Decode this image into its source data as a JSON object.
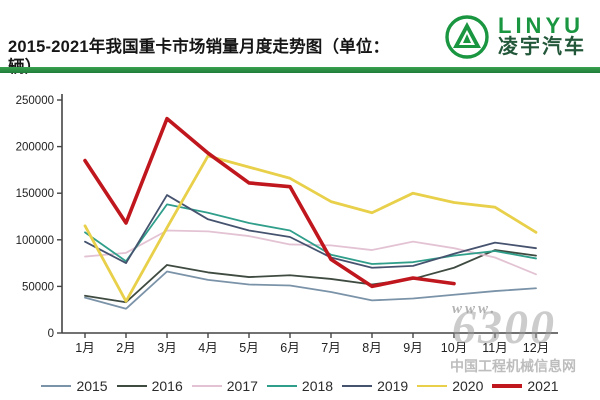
{
  "header": {
    "title": "2015-2021年我国重卡市场销量月度走势图（单位：辆）",
    "brand": {
      "name_en": "LINYU",
      "name_cn": "凌宇汽车",
      "accent_color": "#1a9641",
      "dark_color": "#23573a"
    },
    "divider_color": "#2f9c49"
  },
  "watermark": {
    "www": "www.",
    "number": "6300",
    "site": "中国工程机械信息网"
  },
  "chart_data": {
    "type": "line",
    "title": "2015-2021年我国重卡市场销量月度走势图",
    "unit": "辆",
    "categories": [
      "1月",
      "2月",
      "3月",
      "4月",
      "5月",
      "6月",
      "7月",
      "8月",
      "9月",
      "10月",
      "11月",
      "12月"
    ],
    "ylim": [
      0,
      250000
    ],
    "ytick_step": 50000,
    "yticks": [
      "0",
      "50000",
      "100000",
      "150000",
      "200000",
      "250000"
    ],
    "grid": false,
    "legend_position": "bottom",
    "axis_color": "#444444",
    "series": [
      {
        "name": "2015",
        "color": "#7b93a8",
        "width": 1.8,
        "values": [
          38000,
          26000,
          66000,
          57000,
          52000,
          51000,
          44000,
          35000,
          37000,
          41000,
          45000,
          48000
        ]
      },
      {
        "name": "2016",
        "color": "#3f4b41",
        "width": 1.8,
        "values": [
          40000,
          33000,
          73000,
          65000,
          60000,
          62000,
          58000,
          52000,
          58000,
          70000,
          89000,
          83000
        ]
      },
      {
        "name": "2017",
        "color": "#e3c3d3",
        "width": 1.8,
        "values": [
          82000,
          86000,
          110000,
          109000,
          104000,
          95000,
          94000,
          89000,
          98000,
          91000,
          81000,
          63000
        ]
      },
      {
        "name": "2018",
        "color": "#2f9e8a",
        "width": 1.8,
        "values": [
          108000,
          77000,
          138000,
          129000,
          118000,
          110000,
          84000,
          74000,
          76000,
          83000,
          88000,
          80000
        ]
      },
      {
        "name": "2019",
        "color": "#46536f",
        "width": 1.8,
        "values": [
          98000,
          75000,
          148000,
          122000,
          110000,
          103000,
          81000,
          70000,
          72000,
          85000,
          97000,
          91000
        ]
      },
      {
        "name": "2020",
        "color": "#e8d04a",
        "width": 2.8,
        "values": [
          115000,
          34000,
          113000,
          190000,
          178000,
          166000,
          141000,
          129000,
          150000,
          140000,
          135000,
          108000
        ]
      },
      {
        "name": "2021",
        "color": "#c0161d",
        "width": 3.6,
        "values": [
          185000,
          118000,
          230000,
          193000,
          161000,
          157000,
          79000,
          50000,
          59000,
          53000,
          null,
          null
        ]
      }
    ]
  }
}
